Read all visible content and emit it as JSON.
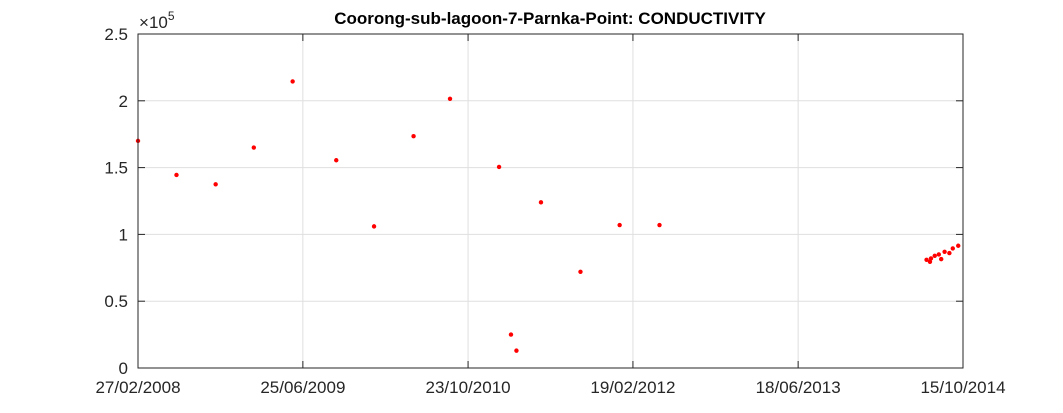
{
  "chart_data": {
    "type": "scatter",
    "title": "Coorong-sub-lagoon-7-Parnka-Point: CONDUCTIVITY",
    "xlabel": "",
    "ylabel": "",
    "y_multiplier": {
      "base": "10",
      "exponent": "5",
      "prefix": "×"
    },
    "xlim": [
      "2008-02-27",
      "2014-10-15"
    ],
    "ylim": [
      0,
      2.5
    ],
    "y_scale_factor": 100000,
    "x_ticks": [
      "27/02/2008",
      "25/06/2009",
      "23/10/2010",
      "19/02/2012",
      "18/06/2013",
      "15/10/2014"
    ],
    "y_ticks": [
      "0",
      "0.5",
      "1",
      "1.5",
      "2",
      "2.5"
    ],
    "grid": true,
    "marker_color": "#ff0000",
    "series": [
      {
        "points": [
          {
            "x": "2008-02-27",
            "y": 170000
          },
          {
            "x": "2008-06-19",
            "y": 144500
          },
          {
            "x": "2008-10-12",
            "y": 137500
          },
          {
            "x": "2009-02-01",
            "y": 165000
          },
          {
            "x": "2009-05-26",
            "y": 214500
          },
          {
            "x": "2009-10-01",
            "y": 155500
          },
          {
            "x": "2010-01-20",
            "y": 106000
          },
          {
            "x": "2010-05-16",
            "y": 173500
          },
          {
            "x": "2010-08-31",
            "y": 201500
          },
          {
            "x": "2011-01-22",
            "y": 150500
          },
          {
            "x": "2011-02-26",
            "y": 25000
          },
          {
            "x": "2011-03-14",
            "y": 13000
          },
          {
            "x": "2011-05-25",
            "y": 124000
          },
          {
            "x": "2011-09-18",
            "y": 72000
          },
          {
            "x": "2012-01-11",
            "y": 107000
          },
          {
            "x": "2012-05-07",
            "y": 107000
          },
          {
            "x": "2014-06-30",
            "y": 81000
          },
          {
            "x": "2014-07-10",
            "y": 79500
          },
          {
            "x": "2014-07-13",
            "y": 82000
          },
          {
            "x": "2014-07-24",
            "y": 84000
          },
          {
            "x": "2014-08-05",
            "y": 85000
          },
          {
            "x": "2014-08-12",
            "y": 81500
          },
          {
            "x": "2014-08-22",
            "y": 87000
          },
          {
            "x": "2014-09-05",
            "y": 86000
          },
          {
            "x": "2014-09-15",
            "y": 89500
          },
          {
            "x": "2014-10-01",
            "y": 91500
          }
        ]
      }
    ]
  }
}
